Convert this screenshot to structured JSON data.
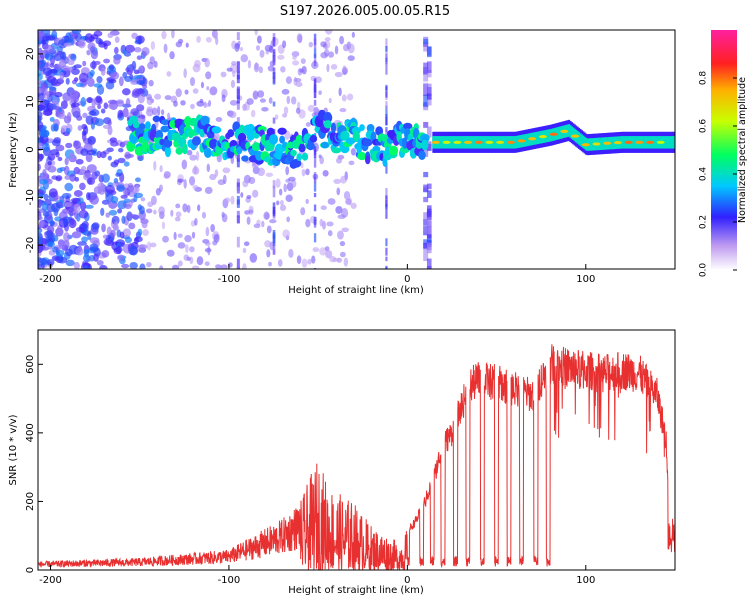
{
  "figure_title": "S197.2026.005.00.05.R15",
  "chart_data": [
    {
      "type": "heatmap",
      "title": "S197.2026.005.00.05.R15",
      "xlabel": "Height of straight line (km)",
      "ylabel": "Frequency (Hz)",
      "xlim": [
        -207,
        150
      ],
      "ylim": [
        -25,
        25
      ],
      "xticks": [
        -200,
        -100,
        0,
        100
      ],
      "yticks": [
        -20,
        -10,
        0,
        10,
        20
      ],
      "colorbar": {
        "label": "Normalized spectral amplitude",
        "range": [
          0,
          1
        ],
        "ticks": [
          0.0,
          0.2,
          0.4,
          0.6,
          0.8
        ]
      },
      "carrier_ridge": {
        "x": [
          -155,
          -140,
          -120,
          -100,
          -80,
          -60,
          -50,
          -40,
          -30,
          -20,
          -10,
          0,
          10,
          20,
          40,
          60,
          80,
          90,
          100,
          120,
          150
        ],
        "frequency": [
          3,
          3,
          3,
          2,
          1,
          0,
          4,
          3,
          2,
          1,
          1,
          2,
          1.5,
          1.5,
          1.5,
          1.5,
          3,
          4,
          1,
          1.5,
          1.5
        ]
      }
    },
    {
      "type": "line",
      "xlabel": "Height of straight line (km)",
      "ylabel": "SNR (10 * v/v)",
      "xlim": [
        -207,
        150
      ],
      "ylim": [
        0,
        700
      ],
      "xticks": [
        -200,
        -100,
        0,
        100
      ],
      "yticks": [
        0,
        200,
        400,
        600
      ],
      "series": [
        {
          "name": "SNR",
          "color": "#e83030",
          "envelope_x": [
            -207,
            -180,
            -150,
            -120,
            -100,
            -90,
            -80,
            -70,
            -60,
            -50,
            -45,
            -40,
            -30,
            -20,
            -10,
            -5,
            0,
            5,
            10,
            15,
            20,
            25,
            30,
            35,
            40,
            50,
            60,
            70,
            80,
            90,
            100,
            110,
            120,
            130,
            140,
            145,
            147,
            150
          ],
          "envelope_y": [
            25,
            30,
            35,
            50,
            60,
            90,
            120,
            150,
            200,
            330,
            260,
            230,
            200,
            130,
            100,
            80,
            120,
            160,
            220,
            300,
            400,
            440,
            520,
            590,
            610,
            600,
            580,
            560,
            660,
            650,
            640,
            630,
            640,
            630,
            560,
            420,
            180,
            150
          ],
          "dropouts_x": [
            0,
            8,
            14,
            20,
            27,
            34,
            42,
            50,
            57,
            64,
            72,
            79
          ]
        }
      ]
    }
  ]
}
